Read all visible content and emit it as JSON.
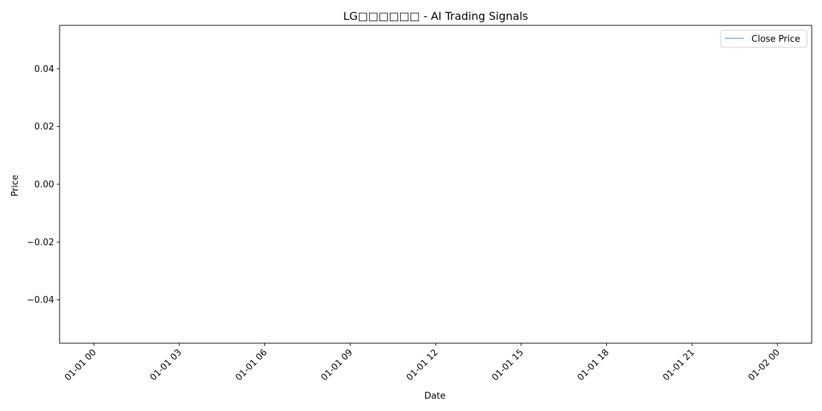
{
  "chart_data": {
    "type": "line",
    "title": "LG□□□□□□ - AI Trading Signals",
    "xlabel": "Date",
    "ylabel": "Price",
    "x_ticks": [
      "01-01 00",
      "01-01 03",
      "01-01 06",
      "01-01 09",
      "01-01 12",
      "01-01 15",
      "01-01 18",
      "01-01 21",
      "01-02 00"
    ],
    "y_ticks": [
      0.04,
      0.02,
      0.0,
      -0.02,
      -0.04
    ],
    "y_tick_labels": [
      "0.04",
      "0.02",
      "0.00",
      "−0.02",
      "−0.04"
    ],
    "ylim": [
      -0.055,
      0.055
    ],
    "xlim": [
      "01-01 00",
      "01-02 00"
    ],
    "x_tick_rotation_deg": 45,
    "grid": false,
    "legend_position": "top-right",
    "series": [
      {
        "name": "Close Price",
        "color": "#1f77b4",
        "opacity": 0.6,
        "x": [],
        "values": []
      }
    ]
  }
}
